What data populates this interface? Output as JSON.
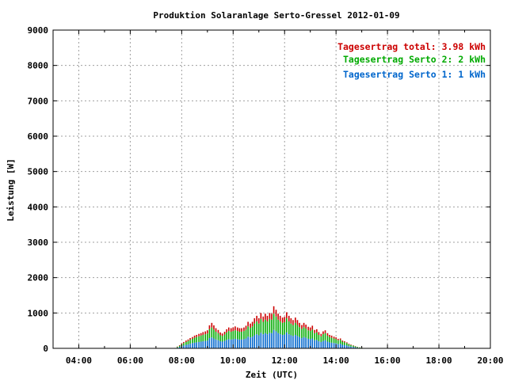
{
  "chart_data": {
    "type": "bar",
    "stacked": true,
    "title": "Produktion Solaranlage Serto-Gressel 2012-01-09",
    "xlabel": "Zeit (UTC)",
    "ylabel": "Leistung [W]",
    "xlim": [
      3.0,
      20.0
    ],
    "ylim": [
      0,
      9000
    ],
    "x_ticks": [
      {
        "v": 4,
        "label": "04:00"
      },
      {
        "v": 6,
        "label": "06:00"
      },
      {
        "v": 8,
        "label": "08:00"
      },
      {
        "v": 10,
        "label": "10:00"
      },
      {
        "v": 12,
        "label": "12:00"
      },
      {
        "v": 14,
        "label": "14:00"
      },
      {
        "v": 16,
        "label": "16:00"
      },
      {
        "v": 18,
        "label": "18:00"
      },
      {
        "v": 20,
        "label": "20:00"
      }
    ],
    "y_ticks": [
      0,
      1000,
      2000,
      3000,
      4000,
      5000,
      6000,
      7000,
      8000,
      9000
    ],
    "grid": true,
    "legend_position": "top-right",
    "legend": [
      {
        "text": "Tagesertrag total: 3.98 kWh",
        "color": "#cc0000"
      },
      {
        "text": "Tagesertrag Serto 2: 2 kWh",
        "color": "#00aa00"
      },
      {
        "text": "Tagesertrag Serto 1: 1 kWh",
        "color": "#0066cc"
      }
    ],
    "x": [
      7.75,
      7.83,
      7.92,
      8.0,
      8.08,
      8.17,
      8.25,
      8.33,
      8.42,
      8.5,
      8.58,
      8.67,
      8.75,
      8.83,
      8.92,
      9.0,
      9.08,
      9.17,
      9.25,
      9.33,
      9.42,
      9.5,
      9.58,
      9.67,
      9.75,
      9.83,
      9.92,
      10.0,
      10.08,
      10.17,
      10.25,
      10.33,
      10.42,
      10.5,
      10.58,
      10.67,
      10.75,
      10.83,
      10.92,
      11.0,
      11.08,
      11.17,
      11.25,
      11.33,
      11.42,
      11.5,
      11.58,
      11.67,
      11.75,
      11.83,
      11.92,
      12.0,
      12.08,
      12.17,
      12.25,
      12.33,
      12.42,
      12.5,
      12.58,
      12.67,
      12.75,
      12.83,
      12.92,
      13.0,
      13.08,
      13.17,
      13.25,
      13.33,
      13.42,
      13.5,
      13.58,
      13.67,
      13.75,
      13.83,
      13.92,
      14.0,
      14.08,
      14.17,
      14.25,
      14.33,
      14.42,
      14.5,
      14.58,
      14.67,
      14.75,
      14.83,
      14.92,
      15.0,
      15.08,
      15.17
    ],
    "series": [
      {
        "name": "Serto 1",
        "color": "#0066cc",
        "values": [
          5,
          20,
          40,
          60,
          80,
          100,
          110,
          130,
          150,
          160,
          170,
          180,
          190,
          200,
          210,
          220,
          290,
          310,
          280,
          250,
          230,
          200,
          190,
          210,
          240,
          260,
          250,
          260,
          270,
          260,
          250,
          250,
          260,
          280,
          330,
          310,
          330,
          370,
          400,
          370,
          440,
          400,
          430,
          400,
          440,
          430,
          520,
          480,
          430,
          400,
          380,
          390,
          450,
          400,
          370,
          350,
          380,
          350,
          320,
          290,
          320,
          300,
          270,
          260,
          280,
          230,
          240,
          200,
          180,
          210,
          230,
          190,
          170,
          160,
          150,
          140,
          120,
          130,
          100,
          90,
          80,
          60,
          50,
          40,
          30,
          20,
          15,
          10,
          5,
          2
        ]
      },
      {
        "name": "Serto 2",
        "color": "#00aa00",
        "values": [
          5,
          20,
          35,
          55,
          70,
          80,
          100,
          110,
          120,
          140,
          150,
          160,
          170,
          180,
          190,
          200,
          250,
          280,
          250,
          220,
          200,
          170,
          160,
          180,
          210,
          230,
          220,
          230,
          240,
          230,
          220,
          220,
          230,
          250,
          290,
          270,
          290,
          330,
          360,
          330,
          390,
          350,
          380,
          360,
          390,
          380,
          460,
          420,
          380,
          360,
          340,
          350,
          400,
          360,
          330,
          310,
          340,
          310,
          280,
          260,
          280,
          260,
          240,
          230,
          250,
          200,
          210,
          180,
          160,
          190,
          200,
          170,
          150,
          140,
          130,
          120,
          110,
          110,
          90,
          80,
          70,
          55,
          45,
          35,
          25,
          18,
          12,
          8,
          4,
          2
        ]
      },
      {
        "name": "Serto Gressel",
        "color": "#cc0000",
        "values": [
          2,
          10,
          15,
          25,
          30,
          40,
          40,
          50,
          50,
          60,
          60,
          70,
          70,
          80,
          80,
          90,
          110,
          130,
          120,
          100,
          90,
          80,
          70,
          80,
          90,
          100,
          100,
          100,
          110,
          100,
          100,
          100,
          100,
          110,
          130,
          120,
          130,
          150,
          160,
          150,
          170,
          150,
          170,
          160,
          170,
          170,
          210,
          190,
          170,
          160,
          150,
          150,
          170,
          160,
          150,
          140,
          150,
          140,
          120,
          110,
          120,
          110,
          100,
          100,
          110,
          90,
          90,
          80,
          70,
          80,
          80,
          70,
          60,
          60,
          50,
          50,
          40,
          40,
          30,
          30,
          20,
          15,
          12,
          10,
          8,
          5,
          3,
          2,
          1,
          0
        ]
      }
    ]
  }
}
